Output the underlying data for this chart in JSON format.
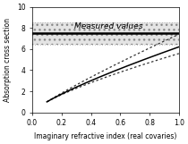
{
  "xlabel": "Imaginary refractive index (real covaries)",
  "ylabel": "Absorption cross section",
  "xlim": [
    0,
    1
  ],
  "ylim": [
    0,
    10
  ],
  "yticks": [
    0,
    2,
    4,
    6,
    8,
    10
  ],
  "xticks": [
    0,
    0.2,
    0.4,
    0.6,
    0.8,
    1
  ],
  "measured_low": 6.4,
  "measured_high": 8.5,
  "measured_central": 7.5,
  "measured_label": "Measured values",
  "shaded_color": "#e0e0e0",
  "shaded_alpha": 0.85,
  "line_color": "#000000",
  "bg_color": "#ffffff",
  "curve_x_start": 0.1,
  "curve_x_end": 1.0,
  "central_params": [
    3.5,
    0.57,
    0.0
  ],
  "upper_params": [
    3.9,
    0.52,
    0.5
  ],
  "lower_params": [
    3.1,
    0.62,
    -0.3
  ],
  "tick_fontsize": 5.5,
  "label_fontsize": 5.5
}
